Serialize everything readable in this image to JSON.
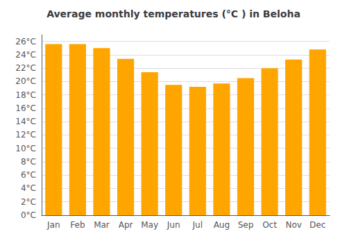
{
  "chart_data": {
    "type": "bar",
    "title": "Average monthly temperatures (°C ) in Beloha",
    "categories": [
      "Jan",
      "Feb",
      "Mar",
      "Apr",
      "May",
      "Jun",
      "Jul",
      "Aug",
      "Sep",
      "Oct",
      "Nov",
      "Dec"
    ],
    "values": [
      25.6,
      25.6,
      25.0,
      23.4,
      21.4,
      19.5,
      19.2,
      19.7,
      20.5,
      22.0,
      23.3,
      24.8
    ],
    "color": "#FFA500",
    "ylim": [
      0,
      27
    ],
    "yticks": [
      {
        "value": 0,
        "label": "0°C"
      },
      {
        "value": 2,
        "label": "2°C"
      },
      {
        "value": 4,
        "label": "4°C"
      },
      {
        "value": 6,
        "label": "6°C"
      },
      {
        "value": 8,
        "label": "8°C"
      },
      {
        "value": 10,
        "label": "10°C"
      },
      {
        "value": 12,
        "label": "12°C"
      },
      {
        "value": 14,
        "label": "14°C"
      },
      {
        "value": 16,
        "label": "16°C"
      },
      {
        "value": 18,
        "label": "18°C"
      },
      {
        "value": 20,
        "label": "20°C"
      },
      {
        "value": 22,
        "label": "22°C"
      },
      {
        "value": 24,
        "label": "24°C"
      },
      {
        "value": 26,
        "label": "26°C"
      }
    ],
    "grid": true
  }
}
